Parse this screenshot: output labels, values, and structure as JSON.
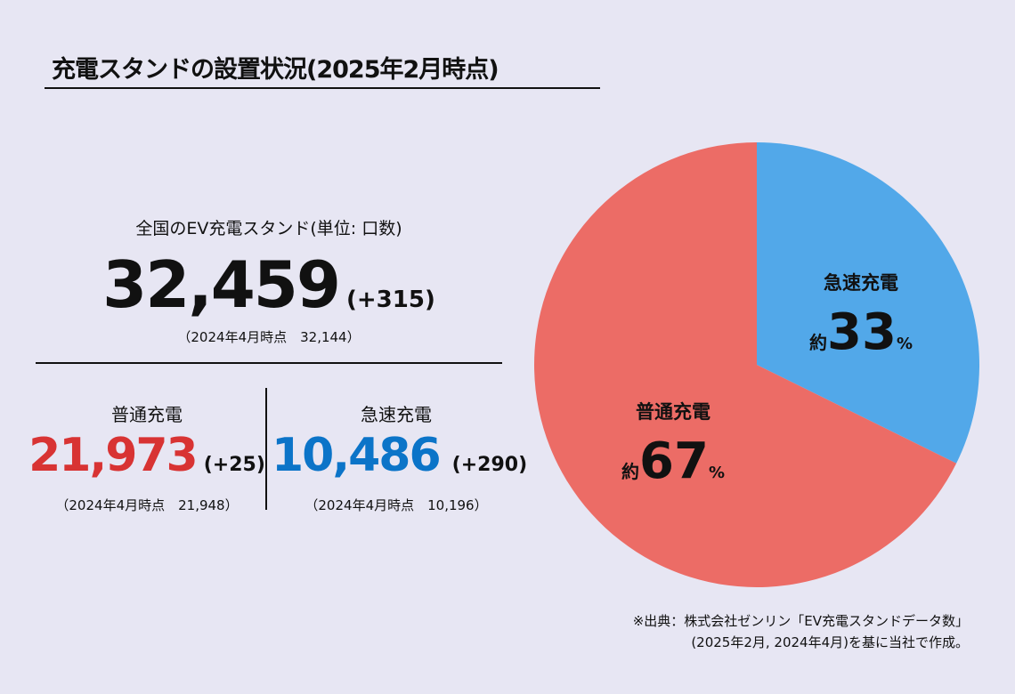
{
  "title": "充電スタンドの設置状況(2025年2月時点)",
  "total": {
    "label": "全国のEV充電スタンド(単位: 口数)",
    "value": "32,459",
    "delta": "(+315)",
    "prev": "（2024年4月時点　32,144）"
  },
  "normal": {
    "label": "普通充電",
    "value": "21,973",
    "delta": "(+25)",
    "prev": "（2024年4月時点　21,948）",
    "color": "#d83333"
  },
  "fast": {
    "label": "急速充電",
    "value": "10,486",
    "delta": "(+290)",
    "prev": "（2024年4月時点　10,196）",
    "color": "#0b74c8"
  },
  "source": [
    "※出典：株式会社ゼンリン「EV充電スタンドデータ数」",
    "(2025年2月, 2024年4月)を基に当社で作成。"
  ],
  "chart_data": {
    "type": "pie",
    "categories": [
      "急速充電",
      "普通充電"
    ],
    "values": [
      10486,
      21973
    ],
    "labels": [
      {
        "name": "急速充電",
        "prefix": "約",
        "pct": "33",
        "unit": "%"
      },
      {
        "name": "普通充電",
        "prefix": "約",
        "pct": "67",
        "unit": "%"
      }
    ],
    "colors": [
      "#52a8e9",
      "#ec6c66"
    ],
    "start": "top",
    "direction": "clockwise"
  }
}
